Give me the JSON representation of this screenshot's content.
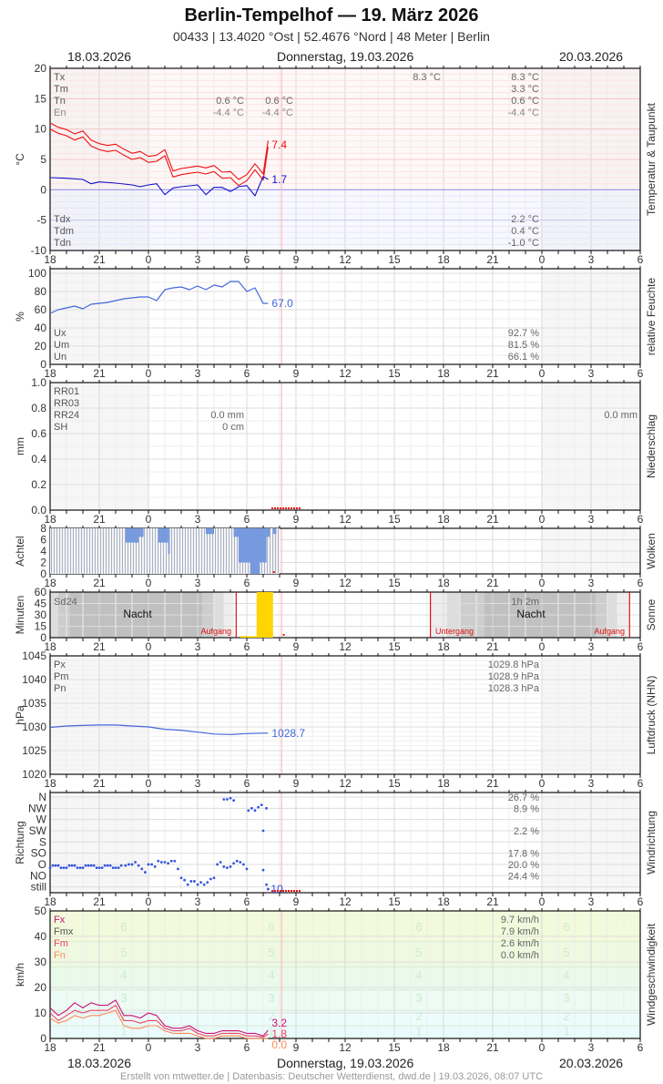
{
  "header": {
    "title": "Berlin-Tempelhof  —  19. März 2026",
    "subtitle": "00433  |  13.4020 °Ost  |  52.4676 °Nord  |  48 Meter  |  Berlin",
    "date_left": "18.03.2026",
    "date_center": "Donnerstag, 19.03.2026",
    "date_right": "20.03.2026"
  },
  "footer": {
    "text": "Erstellt von mtwetter.de | Datenbasis: Deutscher Wetterdienst, dwd.de | 19.03.2026, 08:07 UTC"
  },
  "x_ticks": [
    "18",
    "21",
    "0",
    "3",
    "6",
    "9",
    "12",
    "15",
    "18",
    "21",
    "0",
    "3",
    "6"
  ],
  "colors": {
    "temp": "#ee1111",
    "dew": "#1111cc",
    "humidity": "#4466dd",
    "pressure": "#4466dd",
    "wind_dir": "#3355dd",
    "clouds": "#7799dd",
    "sun": "#ffd500",
    "fx": "#cc1177",
    "fm": "#ee4466",
    "fn": "#ff8855",
    "now_line": "#ffbbbb",
    "sun_event": "#dd1111"
  },
  "chart_data": [
    {
      "id": "temperature",
      "type": "line",
      "title": "Temperatur & Taupunkt",
      "ylabel": "°C",
      "ylim": [
        -10,
        20
      ],
      "yticks": [
        "20",
        "15",
        "10",
        "5",
        "0",
        "-5",
        "-10"
      ],
      "legend_top": [
        "Tx",
        "Tm",
        "Tn",
        "En"
      ],
      "legend_bottom": [
        "Tdx",
        "Tdm",
        "Tdn"
      ],
      "day1_values": {
        "Tn": "0.6 °C",
        "En": "-4.4 °C"
      },
      "day1_values_b": {
        "Tn": "0.6 °C",
        "En": "-4.4 °C"
      },
      "day2_values": {
        "Tx": "8.3 °C",
        "Tm": "3.3 °C",
        "Tn": "0.6 °C",
        "En": "-4.4 °C",
        "Tdx": "2.2 °C",
        "Tdm": "0.4 °C",
        "Tdn": "-1.0 °C"
      },
      "forecast_tx": "8.3 °C",
      "last_temp": "7.4",
      "last_dew": "1.7",
      "series": [
        {
          "name": "T",
          "x": [
            18,
            18.5,
            19,
            19.5,
            20,
            20.5,
            21,
            21.5,
            22,
            22.5,
            23,
            23.5,
            24,
            24.5,
            25,
            25.5,
            26,
            26.5,
            27,
            27.5,
            28,
            28.5,
            29,
            29.5,
            30,
            30.5,
            31,
            31.3
          ],
          "values": [
            10.3,
            9.6,
            9.2,
            8.5,
            9.0,
            7.5,
            6.9,
            6.6,
            6.8,
            6.0,
            5.3,
            5.6,
            4.8,
            5.0,
            5.9,
            2.4,
            2.8,
            3.0,
            3.2,
            2.9,
            3.3,
            2.2,
            2.3,
            1.0,
            1.8,
            3.6,
            1.9,
            7.4
          ]
        },
        {
          "name": "Td",
          "x": [
            18,
            19,
            20,
            20.5,
            21,
            22,
            23,
            23.5,
            24,
            24.5,
            25,
            25.5,
            26,
            27,
            27.5,
            28,
            28.5,
            29,
            29.5,
            30,
            30.5,
            31,
            31.3
          ],
          "values": [
            2.0,
            1.9,
            1.7,
            1.0,
            1.3,
            1.1,
            0.8,
            0.5,
            0.8,
            1.0,
            -0.8,
            0.3,
            0.5,
            0.8,
            -0.8,
            0.4,
            0.4,
            -0.3,
            0.5,
            0.7,
            -1.0,
            2.2,
            1.7
          ]
        }
      ]
    },
    {
      "id": "humidity",
      "type": "line",
      "title": "relative Feuchte",
      "ylabel": "%",
      "ylim": [
        0,
        100
      ],
      "yticks": [
        "100",
        "80",
        "60",
        "40",
        "20",
        "0"
      ],
      "legend": [
        "Ux",
        "Um",
        "Un"
      ],
      "day2_values": {
        "Ux": "92.7 %",
        "Um": "81.5 %",
        "Un": "66.1 %"
      },
      "last_value": "67.0",
      "series": [
        {
          "name": "U",
          "x": [
            18,
            18.5,
            19,
            19.5,
            20,
            20.5,
            21,
            21.5,
            22,
            22.5,
            23,
            23.5,
            24,
            24.5,
            25,
            25.5,
            26,
            26.5,
            27,
            27.5,
            28,
            28.5,
            29,
            29.5,
            30,
            30.5,
            31,
            31.3
          ],
          "values": [
            56,
            60,
            62,
            64,
            61,
            66,
            67,
            68,
            70,
            72,
            73,
            74,
            74,
            70,
            82,
            84,
            85,
            82,
            86,
            82,
            87,
            85,
            91,
            91,
            80,
            84,
            67,
            67
          ]
        }
      ]
    },
    {
      "id": "precipitation",
      "type": "bar",
      "title": "Niederschlag",
      "ylabel": "mm",
      "ylim": [
        0,
        1.0
      ],
      "yticks": [
        "1.0",
        "0.8",
        "0.6",
        "0.4",
        "0.2",
        "0.0"
      ],
      "legend": [
        "RR01",
        "RR03",
        "RR24",
        "SH"
      ],
      "day1_values": {
        "RR24": "0.0 mm",
        "SH": "0 cm"
      },
      "day2_values": {
        "RR24": "0.0 mm"
      },
      "values": []
    },
    {
      "id": "clouds",
      "type": "bar",
      "title": "Wolken",
      "ylabel": "Achtel",
      "ylim": [
        0,
        8
      ],
      "yticks": [
        "8",
        "6",
        "4",
        "2",
        "0"
      ],
      "note": "hourly-ish cloud cover in eighths, blue segments show gaps from full overcast",
      "x": [
        18,
        19,
        20,
        21,
        22,
        22.5,
        23,
        23.5,
        24,
        24.5,
        25,
        25.5,
        26,
        27,
        27.5,
        28,
        28.5,
        29,
        29.5,
        30,
        30.5,
        31,
        31.3
      ],
      "values": [
        8,
        8,
        8,
        8,
        8,
        6.5,
        8,
        8,
        8,
        7,
        5,
        8,
        8,
        8,
        7,
        8,
        8,
        8,
        7,
        2,
        0,
        2,
        7
      ]
    },
    {
      "id": "sunshine",
      "type": "bar",
      "title": "Sonne",
      "ylabel": "Minuten",
      "ylim": [
        0,
        60
      ],
      "yticks": [
        "60",
        "45",
        "30",
        "15",
        "0"
      ],
      "legend": [
        "Sd24"
      ],
      "day2_sd24": "1h 2m",
      "night_label": "Nacht",
      "sunrise_label": "Aufgang",
      "sunset_label": "Untergang",
      "x": [
        5.5,
        6,
        6.5
      ],
      "values": [
        2,
        60,
        60
      ]
    },
    {
      "id": "pressure",
      "type": "line",
      "title": "Luftdruck (NHN)",
      "ylabel": "hPa",
      "ylim": [
        1020,
        1045
      ],
      "yticks": [
        "1045",
        "1040",
        "1035",
        "1030",
        "1025",
        "1020"
      ],
      "legend": [
        "Px",
        "Pm",
        "Pn"
      ],
      "day2_values": {
        "Px": "1029.8 hPa",
        "Pm": "1028.9 hPa",
        "Pn": "1028.3 hPa"
      },
      "last_value": "1028.7",
      "series": [
        {
          "name": "P",
          "x": [
            18,
            19,
            20,
            21,
            22,
            23,
            24,
            25,
            26,
            27,
            28,
            29,
            30,
            31,
            31.3
          ],
          "values": [
            1029.9,
            1030.2,
            1030.3,
            1030.4,
            1030.4,
            1030.2,
            1030.0,
            1029.5,
            1029.3,
            1028.9,
            1028.5,
            1028.4,
            1028.6,
            1028.7,
            1028.7
          ]
        }
      ]
    },
    {
      "id": "wind_direction",
      "type": "scatter",
      "title": "Windrichtung",
      "ylabel": "Richtung",
      "yticks": [
        "N",
        "NW",
        "W",
        "SW",
        "S",
        "SO",
        "O",
        "NO",
        "still"
      ],
      "day2_values": {
        "N": "26.7 %",
        "NW": "8.9 %",
        "SW": "2.2 %",
        "SO": "17.8 %",
        "O": "20.0 %",
        "NO": "24.4 %"
      },
      "last_value": "10"
    },
    {
      "id": "wind_speed",
      "type": "line",
      "title": "Windgeschwindigkeit",
      "ylabel": "km/h",
      "ylim": [
        0,
        50
      ],
      "yticks": [
        "50",
        "40",
        "30",
        "20",
        "10",
        "0"
      ],
      "legend": [
        "Fx",
        "Fmx",
        "Fm",
        "Fn"
      ],
      "day2_values": {
        "Fx": "9.7 km/h",
        "Fmx": "7.9 km/h",
        "Fm": "2.6 km/h",
        "Fn": "0.0 km/h"
      },
      "beaufort_labels": [
        "6",
        "5",
        "4",
        "3",
        "2",
        "1"
      ],
      "last_fx": "3.2",
      "last_fm": "1.8",
      "last_fn": "0.0",
      "series": [
        {
          "name": "Fx",
          "x": [
            18,
            18.5,
            19,
            19.5,
            20,
            20.5,
            21,
            21.5,
            22,
            22.5,
            23,
            23.5,
            24,
            24.5,
            25,
            25.5,
            26,
            26.5,
            27,
            27.5,
            28,
            28.5,
            29,
            29.5,
            30,
            30.5,
            31,
            31.3
          ],
          "values": [
            12,
            9,
            11,
            14,
            12,
            14,
            13,
            13,
            15,
            9,
            9,
            8,
            10,
            9,
            5,
            4,
            4,
            5,
            3,
            2,
            2,
            3,
            3,
            3,
            2,
            2,
            1,
            3.2
          ]
        },
        {
          "name": "Fm",
          "x": [
            18,
            18.5,
            19,
            19.5,
            20,
            20.5,
            21,
            21.5,
            22,
            22.5,
            23,
            23.5,
            24,
            24.5,
            25,
            25.5,
            26,
            26.5,
            27,
            27.5,
            28,
            28.5,
            29,
            29.5,
            30,
            30.5,
            31,
            31.3
          ],
          "values": [
            10,
            7,
            9,
            11,
            10,
            11,
            11,
            11,
            13,
            7,
            7,
            6,
            7,
            7,
            4,
            3,
            3,
            4,
            2,
            1,
            1,
            2,
            2,
            2,
            1,
            1,
            0.5,
            1.8
          ]
        },
        {
          "name": "Fn",
          "x": [
            18,
            18.5,
            19,
            19.5,
            20,
            20.5,
            21,
            21.5,
            22,
            22.5,
            23,
            23.5,
            24,
            24.5,
            25,
            25.5,
            26,
            26.5,
            27,
            27.5,
            28,
            28.5,
            29,
            29.5,
            30,
            30.5,
            31,
            31.3
          ],
          "values": [
            8,
            6,
            7,
            9,
            8,
            9,
            9,
            10,
            11,
            5,
            4,
            4,
            5,
            5,
            3,
            2,
            2,
            2,
            1,
            0,
            0,
            1,
            1,
            1,
            0,
            0,
            0,
            0.0
          ]
        }
      ]
    }
  ]
}
